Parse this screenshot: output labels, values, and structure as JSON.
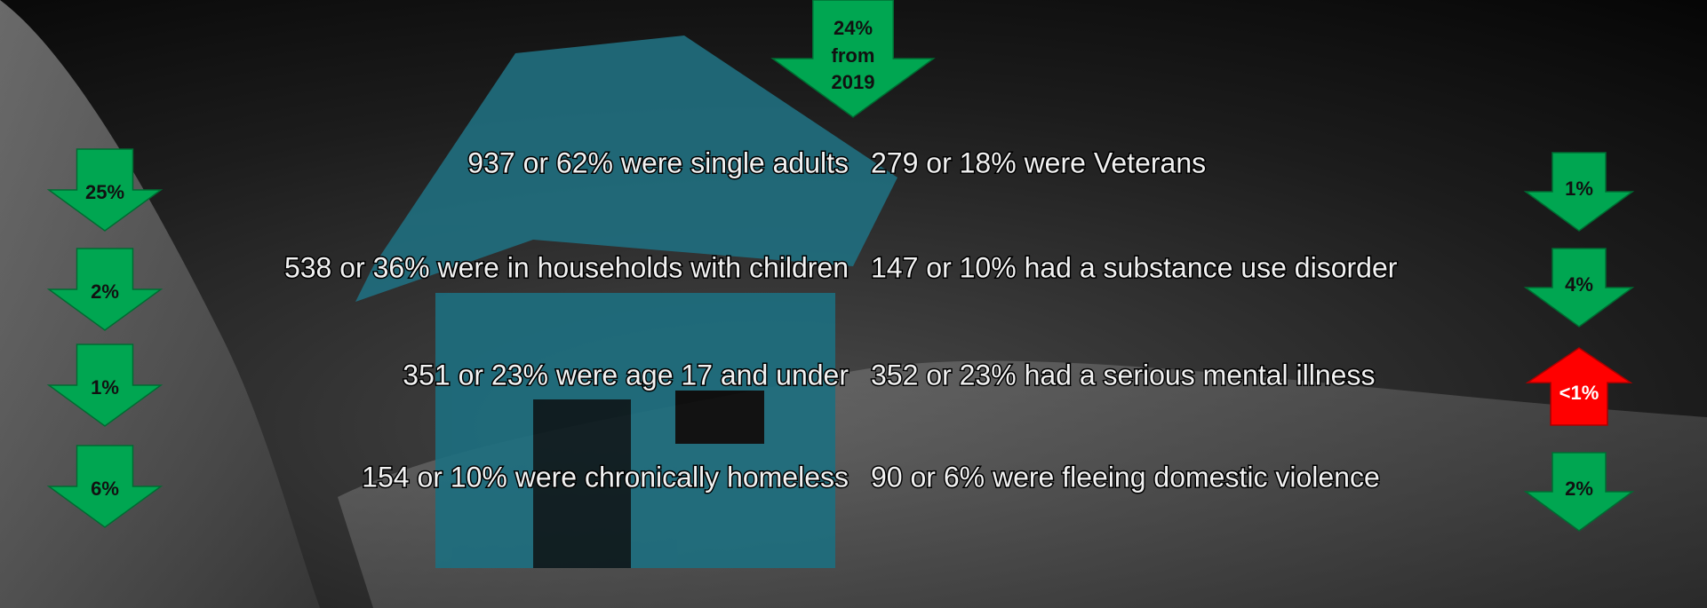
{
  "headline_arrow": [
    "24%",
    "from",
    "2019"
  ],
  "left_items": [
    {
      "text": "937 or 62% were single adults",
      "change": "25%"
    },
    {
      "text": "538 or 36% were in households with children",
      "change": "2%"
    },
    {
      "text": "351 or 23% were age 17 and under",
      "change": "1%"
    },
    {
      "text": "154 or 10% were chronically homeless",
      "change": "6%"
    }
  ],
  "right_items": [
    {
      "text": "279 or 18% were Veterans",
      "change": "1%"
    },
    {
      "text": "147 or 10% had a substance use disorder",
      "change": "4%"
    },
    {
      "text": "352 or 23% had a serious mental illness",
      "change": "<1%"
    },
    {
      "text": "90 or 6% were fleeing domestic violence",
      "change": "2%"
    }
  ]
}
